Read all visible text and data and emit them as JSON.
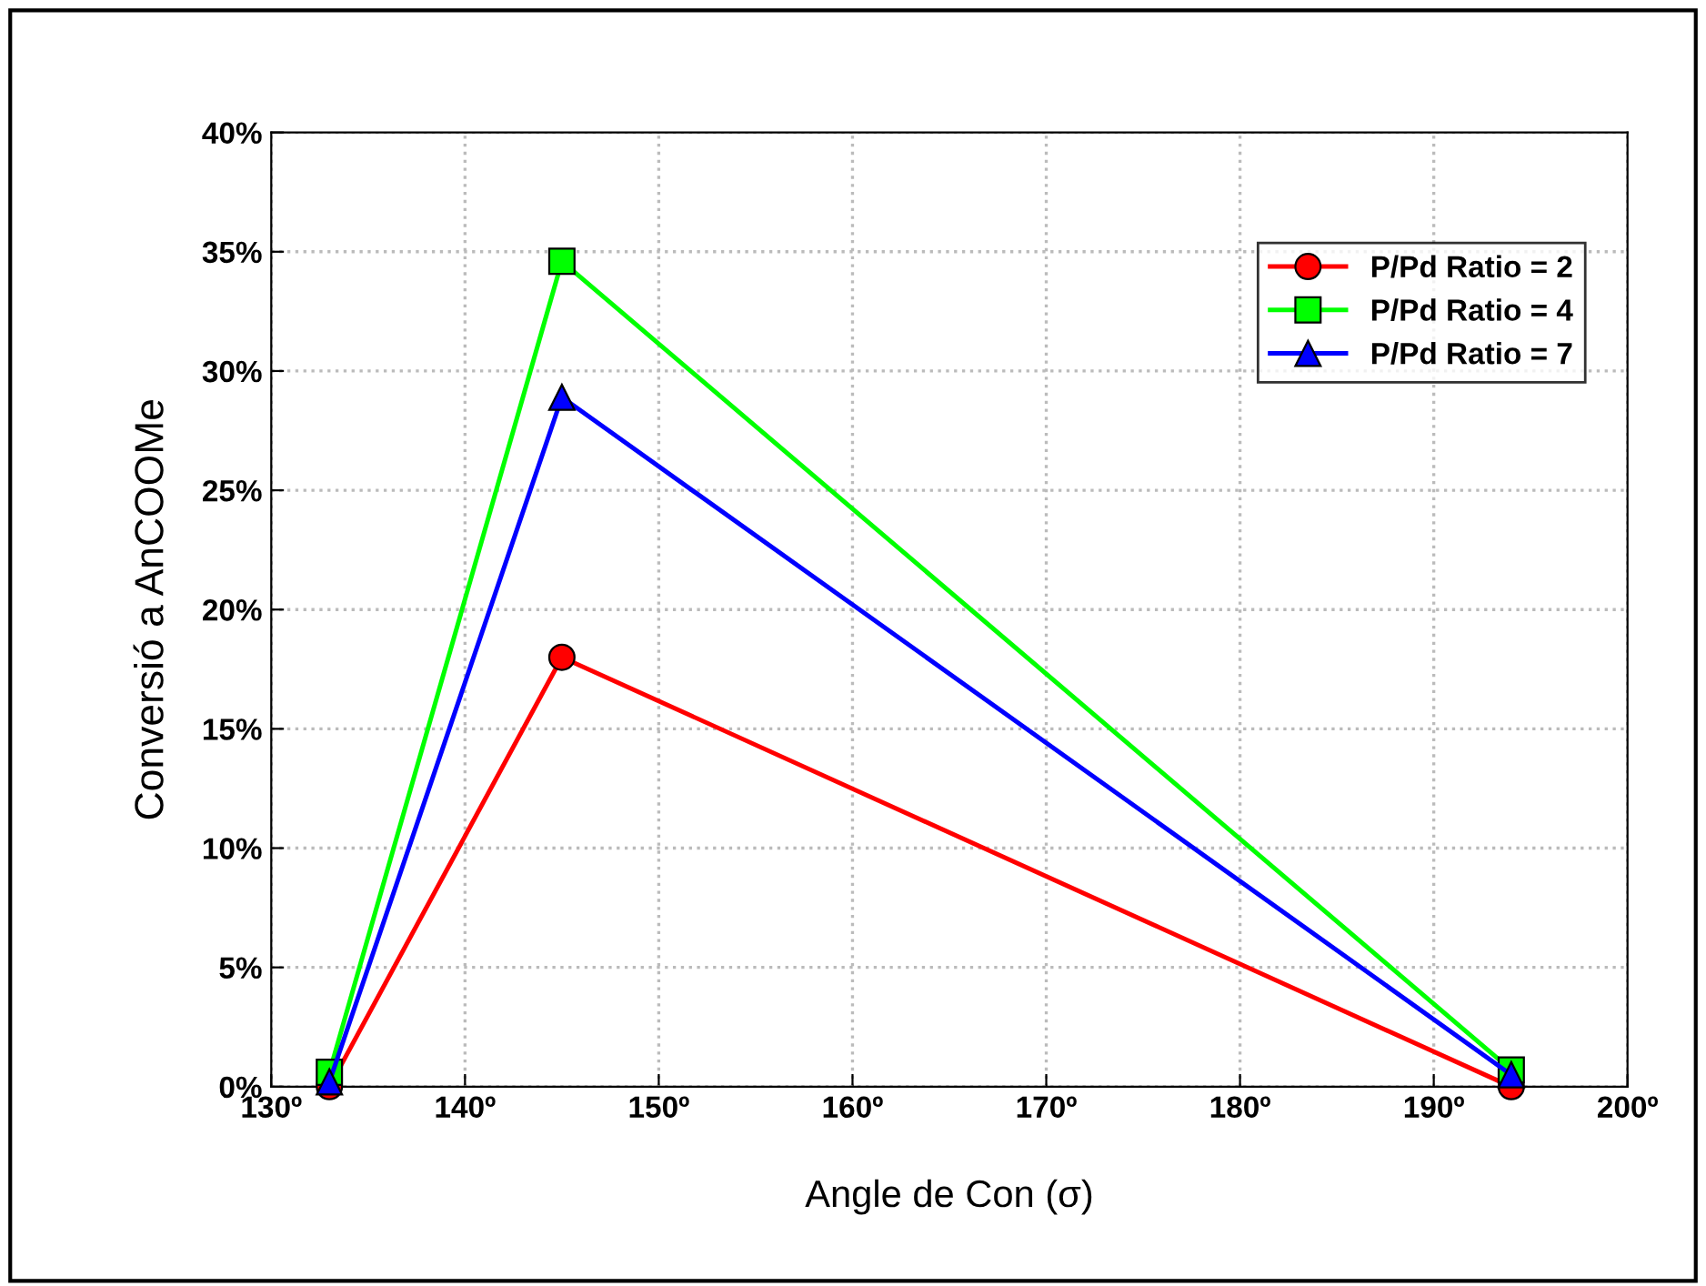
{
  "chart_data": {
    "type": "line",
    "xlabel": "Angle de Con (σ)",
    "ylabel": "Conversió a AnCOOMe",
    "x": [
      133,
      145,
      194
    ],
    "series": [
      {
        "name": "P/Pd Ratio = 2",
        "color": "#ff0000",
        "marker": "circle",
        "values": [
          0,
          18,
          0
        ]
      },
      {
        "name": "P/Pd Ratio = 4",
        "color": "#00ff00",
        "marker": "square",
        "values": [
          0.6,
          34.6,
          0.7
        ]
      },
      {
        "name": "P/Pd Ratio = 7",
        "color": "#0000ff",
        "marker": "triangle",
        "values": [
          0.2,
          28.9,
          0.5
        ]
      }
    ],
    "xlim": [
      130,
      200
    ],
    "xticks": [
      {
        "value": 130,
        "label": "130º"
      },
      {
        "value": 140,
        "label": "140º"
      },
      {
        "value": 150,
        "label": "150º"
      },
      {
        "value": 160,
        "label": "160º"
      },
      {
        "value": 170,
        "label": "170º"
      },
      {
        "value": 180,
        "label": "180º"
      },
      {
        "value": 190,
        "label": "190º"
      },
      {
        "value": 200,
        "label": "200º"
      }
    ],
    "ylim": [
      0,
      40
    ],
    "yticks": [
      {
        "value": 0,
        "label": "0%"
      },
      {
        "value": 5,
        "label": "5%"
      },
      {
        "value": 10,
        "label": "10%"
      },
      {
        "value": 15,
        "label": "15%"
      },
      {
        "value": 20,
        "label": "20%"
      },
      {
        "value": 25,
        "label": "25%"
      },
      {
        "value": 30,
        "label": "30%"
      },
      {
        "value": 35,
        "label": "35%"
      },
      {
        "value": 40,
        "label": "40%"
      }
    ],
    "grid": true,
    "legend": "top right",
    "line_style": "solid"
  }
}
